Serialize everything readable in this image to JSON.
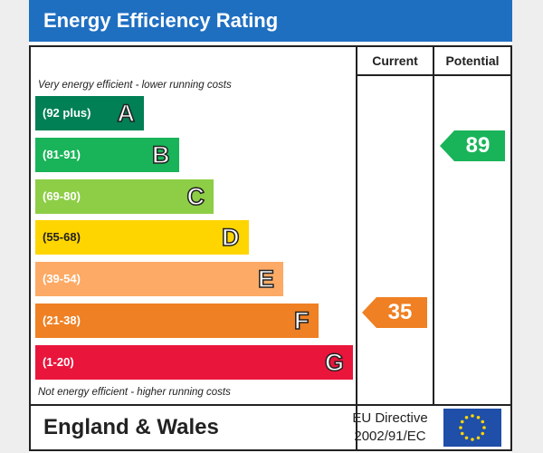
{
  "title": "Energy Efficiency Rating",
  "columns": {
    "current": "Current",
    "potential": "Potential"
  },
  "notes": {
    "top": "Very energy efficient - lower running costs",
    "bottom": "Not energy efficient - higher running costs"
  },
  "bands": [
    {
      "range": "(92 plus)",
      "letter": "A",
      "color": "#008054"
    },
    {
      "range": "(81-91)",
      "letter": "B",
      "color": "#19b459"
    },
    {
      "range": "(69-80)",
      "letter": "C",
      "color": "#8dce46"
    },
    {
      "range": "(55-68)",
      "letter": "D",
      "color": "#ffd500"
    },
    {
      "range": "(39-54)",
      "letter": "E",
      "color": "#fcaa65"
    },
    {
      "range": "(21-38)",
      "letter": "F",
      "color": "#ef8023"
    },
    {
      "range": "(1-20)",
      "letter": "G",
      "color": "#e9153b"
    }
  ],
  "ratings": {
    "current": {
      "value": "35",
      "band": "F",
      "color": "#ef8023"
    },
    "potential": {
      "value": "89",
      "band": "B",
      "color": "#19b459"
    }
  },
  "footer": {
    "region": "England & Wales",
    "directive_line1": "EU Directive",
    "directive_line2": "2002/91/EC"
  },
  "flag": {
    "background": "#1f4fa8",
    "stars": "#ffd500"
  }
}
